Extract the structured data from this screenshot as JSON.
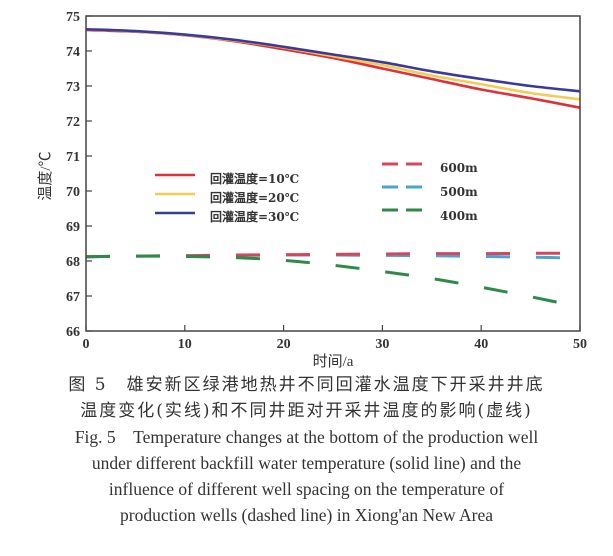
{
  "chart_data": {
    "type": "line",
    "xlabel": "时间/a",
    "ylabel": "温度/℃",
    "xlim": [
      0,
      50
    ],
    "ylim": [
      66,
      75
    ],
    "xticks": [
      0,
      10,
      20,
      30,
      40,
      50
    ],
    "yticks": [
      66,
      67,
      68,
      69,
      70,
      71,
      72,
      73,
      74,
      75
    ],
    "grid": false,
    "x": [
      0,
      5,
      10,
      15,
      20,
      25,
      30,
      35,
      40,
      45,
      50
    ],
    "series": [
      {
        "name": "回灌温度=10℃",
        "style": "solid",
        "color": "#e0303a",
        "values": [
          74.6,
          74.55,
          74.45,
          74.28,
          74.05,
          73.8,
          73.5,
          73.2,
          72.9,
          72.65,
          72.38
        ]
      },
      {
        "name": "回灌温度=20℃",
        "style": "solid",
        "color": "#f5cc50",
        "values": [
          74.62,
          74.56,
          74.46,
          74.3,
          74.1,
          73.85,
          73.6,
          73.3,
          73.05,
          72.8,
          72.62
        ]
      },
      {
        "name": "回灌温度=30℃",
        "style": "solid",
        "color": "#3a3a9a",
        "values": [
          74.62,
          74.57,
          74.47,
          74.32,
          74.12,
          73.9,
          73.68,
          73.42,
          73.2,
          73.0,
          72.85
        ]
      },
      {
        "name": "600m",
        "style": "dashed",
        "color": "#d4475a",
        "values": [
          68.12,
          68.14,
          68.15,
          68.17,
          68.18,
          68.19,
          68.2,
          68.21,
          68.21,
          68.22,
          68.22
        ]
      },
      {
        "name": "500m",
        "style": "dashed",
        "color": "#4aa3d6",
        "values": [
          68.12,
          68.14,
          68.15,
          68.16,
          68.17,
          68.17,
          68.16,
          68.15,
          68.13,
          68.11,
          68.08
        ]
      },
      {
        "name": "400m",
        "style": "dashed",
        "color": "#2e8a4a",
        "values": [
          68.12,
          68.14,
          68.13,
          68.1,
          68.02,
          67.88,
          67.7,
          67.5,
          67.25,
          66.98,
          66.68
        ]
      }
    ],
    "legend": "center"
  },
  "caption": {
    "cn_line1": "图 5　雄安新区绿港地热井不同回灌水温度下开采井井底",
    "cn_line2": "温度变化(实线)和不同井距对开采井温度的影响(虚线)",
    "en_line1": "Fig. 5　Temperature changes at the bottom of the production well",
    "en_line2": "under different backfill water temperature (solid line) and the",
    "en_line3": "influence of different well spacing on the temperature of",
    "en_line4": "production wells (dashed line) in Xiong'an New Area"
  }
}
